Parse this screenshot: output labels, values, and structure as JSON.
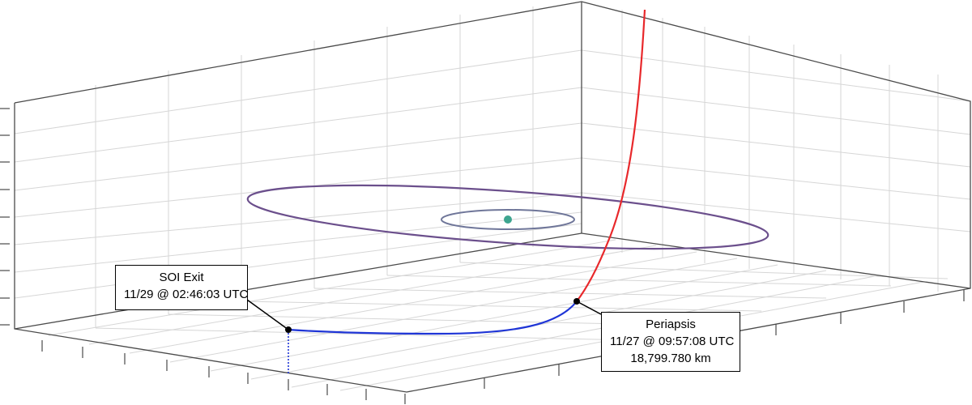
{
  "colors": {
    "inbound_trajectory": "#e8282b",
    "outbound_trajectory": "#1f35d6",
    "outer_orbit": "#6b4f8c",
    "inner_orbit": "#6f7699",
    "central_body": "#3ea58f",
    "grid": "#d6d6d6",
    "axes": "#4a4a4a"
  },
  "labels": {
    "soi_exit": {
      "title": "SOI Exit",
      "time": "11/29 @ 02:46:03 UTC"
    },
    "periapsis": {
      "title": "Periapsis",
      "time": "11/27 @ 09:57:08 UTC",
      "altitude": "18,799.780 km"
    }
  }
}
